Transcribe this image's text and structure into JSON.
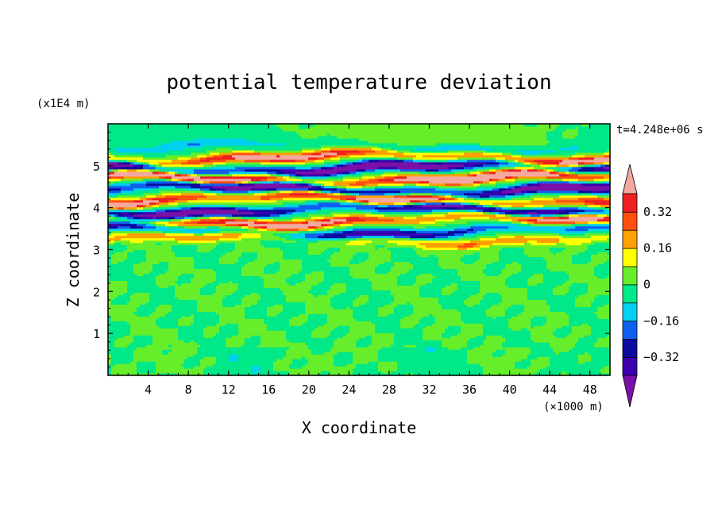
{
  "chart_data": {
    "type": "heatmap",
    "title": "potential temperature deviation",
    "xlabel": "X coordinate",
    "ylabel": "Z coordinate",
    "x_unit": "(×1000 m)",
    "y_unit": "(x1E4 m)",
    "time_label": "t=4.248e+06 s",
    "xlim": [
      0,
      50
    ],
    "ylim": [
      0,
      6
    ],
    "x_ticks": [
      4,
      8,
      12,
      16,
      20,
      24,
      28,
      32,
      36,
      40,
      44,
      48
    ],
    "x_tick_labels": [
      "4",
      "8",
      "12",
      "16",
      "20",
      "24",
      "28",
      "32",
      "36",
      "40",
      "44",
      "48"
    ],
    "y_ticks": [
      1,
      2,
      3,
      4,
      5
    ],
    "y_tick_labels": [
      "1",
      "2",
      "3",
      "4",
      "5"
    ],
    "colorbar": {
      "levels": [
        -0.4,
        -0.32,
        -0.24,
        -0.16,
        -0.08,
        0,
        0.08,
        0.16,
        0.24,
        0.32,
        0.4
      ],
      "colors": [
        "#7a10a8",
        "#3a00b0",
        "#0a0aa0",
        "#1060f0",
        "#00d0f0",
        "#00e888",
        "#66ee2a",
        "#ffff00",
        "#ffa000",
        "#ff5010",
        "#ee2020",
        "#f4a8a0"
      ],
      "tick_values": [
        0.32,
        0.16,
        0,
        -0.16,
        -0.32
      ],
      "tick_labels": [
        "0.32",
        "0.16",
        "0",
        "−0.16",
        "−0.32"
      ]
    },
    "field_bands": [
      {
        "z": 3.25,
        "amp": 0.22
      },
      {
        "z": 3.45,
        "amp": 0.35
      },
      {
        "z": 3.7,
        "amp": 0.48
      },
      {
        "z": 3.95,
        "amp": 0.52
      },
      {
        "z": 4.2,
        "amp": 0.55
      },
      {
        "z": 4.45,
        "amp": 0.58
      },
      {
        "z": 4.7,
        "amp": 0.6
      },
      {
        "z": 4.95,
        "amp": 0.6
      },
      {
        "z": 5.2,
        "amp": 0.45
      },
      {
        "z": 5.45,
        "amp": 0.12
      }
    ]
  }
}
